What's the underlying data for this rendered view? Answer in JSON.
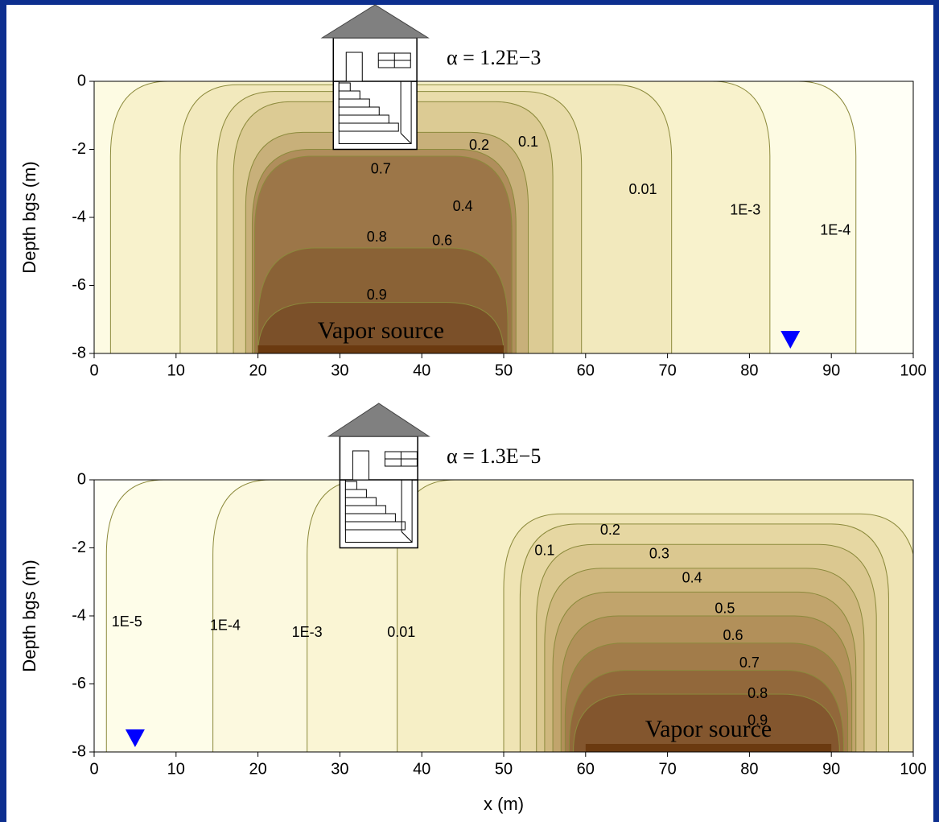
{
  "chart_data": [
    {
      "type": "contour",
      "title": "α = 1.2E−3",
      "ylabel": "Depth bgs (m)",
      "xlim": [
        0,
        100
      ],
      "ylim": [
        -8,
        0
      ],
      "xticks": [
        0,
        10,
        20,
        30,
        40,
        50,
        60,
        70,
        80,
        90,
        100
      ],
      "yticks": [
        0,
        -2,
        -4,
        -6,
        -8
      ],
      "source": {
        "label": "Vapor source",
        "x": [
          20,
          50
        ]
      },
      "basement": {
        "x": [
          29.2,
          39.4
        ],
        "depth": -2
      },
      "water_table_x": 85,
      "levels": [
        {
          "value": 0.0001,
          "label": "1E-4",
          "extent": [
            -10,
            93
          ],
          "top": 0,
          "color": "#fdfbe3",
          "label_x": 90.5,
          "label_y": -4.4
        },
        {
          "value": 0.001,
          "label": "1E-3",
          "extent": [
            2,
            82.5
          ],
          "top": 0,
          "color": "#f8f2cc",
          "label_x": 79.5,
          "label_y": -3.8
        },
        {
          "value": 0.01,
          "extent": [
            10.5,
            70.5
          ],
          "top": -0.1,
          "color": "#f2e9bd",
          "label_x": 67,
          "label_y": -3.2
        },
        {
          "value": 0.1,
          "extent": [
            15,
            59.5
          ],
          "top": -0.3,
          "color": "#e9dcaa",
          "label_x": 53,
          "label_y": -1.8
        },
        {
          "value": 0.2,
          "extent": [
            17,
            56
          ],
          "top": -0.6,
          "color": "#dccb94",
          "label_x": 47,
          "label_y": -1.9
        },
        {
          "value": 0.4,
          "extent": [
            18.5,
            53
          ],
          "top": -1.5,
          "color": "#c8b07a",
          "label_x": 45,
          "label_y": -3.7
        },
        {
          "value": 0.6,
          "extent": [
            19.3,
            51.5
          ],
          "top": -2,
          "color": "#b08e5c",
          "label_x": 42.5,
          "label_y": -4.7
        },
        {
          "value": 0.7,
          "extent": [
            19.6,
            51
          ],
          "top": -2.2,
          "color": "#9c7648",
          "label_x": 35,
          "label_y": -2.6
        },
        {
          "value": 0.8,
          "extent": [
            20,
            50.5
          ],
          "top": -4.9,
          "color": "#8a6236",
          "label_x": 34.5,
          "label_y": -4.6
        },
        {
          "value": 0.9,
          "extent": [
            20,
            50
          ],
          "top": -6.5,
          "color": "#7b5029",
          "label_x": 34.5,
          "label_y": -6.3
        }
      ]
    },
    {
      "type": "contour",
      "title": "α = 1.3E−5",
      "ylabel": "Depth bgs (m)",
      "xlabel": "x (m)",
      "xlim": [
        0,
        100
      ],
      "ylim": [
        -8,
        0
      ],
      "xticks": [
        0,
        10,
        20,
        30,
        40,
        50,
        60,
        70,
        80,
        90,
        100
      ],
      "yticks": [
        0,
        -2,
        -4,
        -6,
        -8
      ],
      "source": {
        "label": "Vapor source",
        "x": [
          60,
          90
        ]
      },
      "basement": {
        "x": [
          30,
          39.5
        ],
        "depth": -2
      },
      "water_table_x": 5,
      "levels": [
        {
          "value": 1e-05,
          "label": "1E-5",
          "extent": [
            1.5,
            130
          ],
          "top": 0,
          "color": "#fefde9",
          "label_x": 4,
          "label_y": -4.2
        },
        {
          "value": 0.0001,
          "label": "1E-4",
          "extent": [
            14.5,
            130
          ],
          "top": 0,
          "color": "#fcf9df",
          "label_x": 16,
          "label_y": -4.3
        },
        {
          "value": 0.001,
          "label": "1E-3",
          "extent": [
            26,
            130
          ],
          "top": 0,
          "color": "#faf5d4",
          "label_x": 26,
          "label_y": -4.5
        },
        {
          "value": 0.01,
          "extent": [
            37,
            130
          ],
          "top": 0,
          "color": "#f6efc6",
          "label_x": 37.5,
          "label_y": -4.5
        },
        {
          "value": 0.1,
          "extent": [
            50,
            100.5
          ],
          "top": -1,
          "color": "#efe4b4",
          "label_x": 55,
          "label_y": -2.1
        },
        {
          "value": 0.2,
          "extent": [
            52,
            97
          ],
          "top": -1.3,
          "color": "#e6d7a2",
          "label_x": 63,
          "label_y": -1.5
        },
        {
          "value": 0.3,
          "extent": [
            54,
            95.5
          ],
          "top": -1.9,
          "color": "#dbc890",
          "label_x": 69,
          "label_y": -2.2
        },
        {
          "value": 0.4,
          "extent": [
            55,
            94
          ],
          "top": -2.6,
          "color": "#cfb77e",
          "label_x": 73,
          "label_y": -2.9
        },
        {
          "value": 0.5,
          "extent": [
            56,
            93
          ],
          "top": -3.3,
          "color": "#c1a46c",
          "label_x": 77,
          "label_y": -3.8
        },
        {
          "value": 0.6,
          "extent": [
            57,
            92.5
          ],
          "top": -4,
          "color": "#b2905a",
          "label_x": 78,
          "label_y": -4.6
        },
        {
          "value": 0.7,
          "extent": [
            57.5,
            92
          ],
          "top": -4.8,
          "color": "#a27c4a",
          "label_x": 80,
          "label_y": -5.4
        },
        {
          "value": 0.8,
          "extent": [
            58,
            91.5
          ],
          "top": -5.6,
          "color": "#92683b",
          "label_x": 81,
          "label_y": -6.3
        },
        {
          "value": 0.9,
          "extent": [
            58.5,
            91
          ],
          "top": -6.3,
          "color": "#83562e",
          "label_x": 81,
          "label_y": -7.1
        }
      ]
    }
  ]
}
